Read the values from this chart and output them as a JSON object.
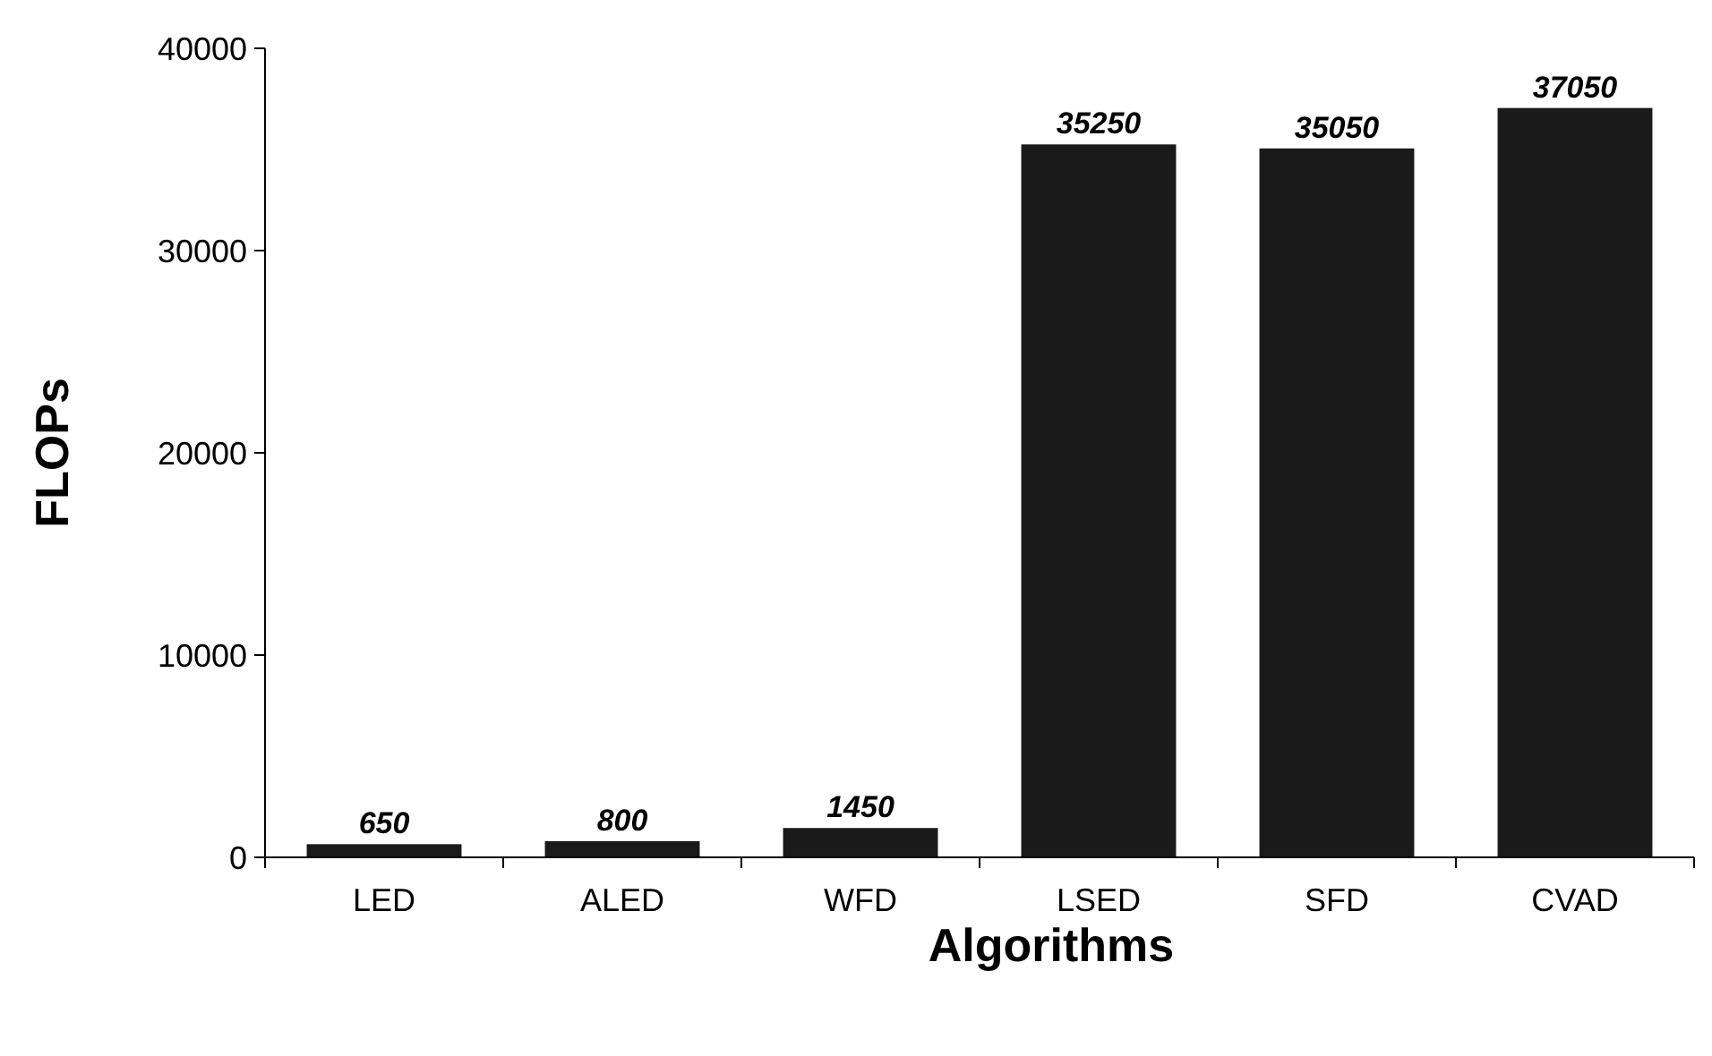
{
  "chart_data": {
    "type": "bar",
    "xlabel": "Algorithms",
    "ylabel": "FLOPs",
    "categories": [
      "LED",
      "ALED",
      "WFD",
      "LSED",
      "SFD",
      "CVAD"
    ],
    "values": [
      650,
      800,
      1450,
      35250,
      35050,
      37050
    ],
    "color": "#1a1a1a",
    "ylim": [
      0,
      40000
    ],
    "yticks": [
      0,
      10000,
      20000,
      30000,
      40000
    ],
    "grid": false,
    "data_labels": true
  }
}
